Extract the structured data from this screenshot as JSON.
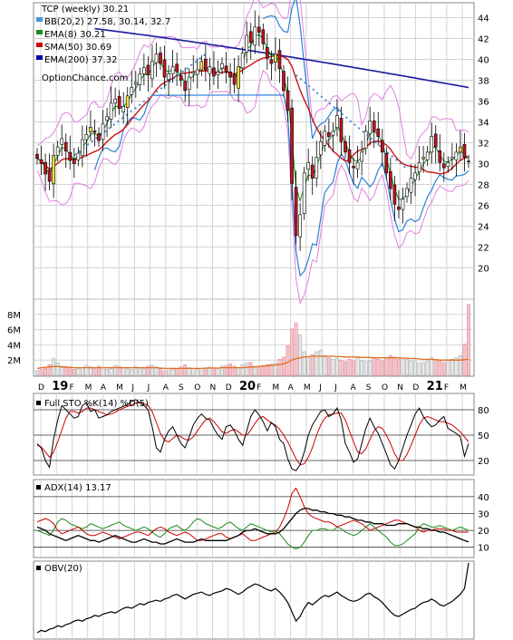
{
  "chart_data": [
    {
      "type": "candlestick",
      "panel": "price",
      "title": "TCP (weekly) 30.21",
      "source": "OptionChance.com",
      "ylim": [
        17,
        45
      ],
      "yticks": [
        20,
        22,
        24,
        26,
        28,
        30,
        32,
        34,
        36,
        38,
        40,
        42,
        44
      ],
      "legend": [
        {
          "label": "BB(20,2) 27.58, 30.14, 32.7",
          "color": "#4a90d9"
        },
        {
          "label": "EMA(8) 30.21",
          "color": "#1a8a1a"
        },
        {
          "label": "SMA(50) 30.69",
          "color": "#cc0000"
        },
        {
          "label": "EMA(200) 37.32",
          "color": "#0000aa"
        }
      ],
      "ema8_last": 30.21,
      "sma50_last": 30.69,
      "ema200_last": 37.32,
      "bb_last": {
        "lower": 27.58,
        "middle": 30.14,
        "upper": 32.7
      },
      "close_series": [
        30.5,
        30.0,
        29.0,
        28.3,
        30.8,
        31.6,
        32.4,
        31.2,
        30.3,
        30.0,
        31.0,
        32.3,
        32.8,
        33.5,
        33.0,
        32.2,
        33.8,
        34.5,
        35.8,
        36.2,
        35.3,
        35.5,
        36.5,
        37.3,
        37.8,
        38.6,
        39.2,
        38.5,
        39.8,
        40.5,
        39.6,
        38.3,
        38.6,
        39.3,
        38.8,
        38.0,
        37.0,
        38.3,
        38.8,
        39.0,
        39.8,
        39.0,
        39.3,
        38.4,
        38.8,
        39.6,
        38.8,
        38.3,
        37.6,
        39.3,
        40.6,
        42.3,
        41.6,
        43.1,
        42.6,
        41.5,
        40.1,
        39.6,
        40.5,
        39.1,
        37.0,
        35.1,
        28.1,
        23.1,
        25.1,
        29.1,
        30.1,
        28.6,
        30.6,
        32.1,
        33.1,
        32.6,
        33.1,
        34.6,
        32.1,
        31.1,
        30.1,
        29.6,
        30.1,
        31.1,
        33.1,
        34.1,
        33.1,
        32.6,
        31.1,
        29.1,
        27.6,
        26.1,
        25.6,
        26.6,
        27.6,
        28.6,
        29.1,
        30.1,
        30.6,
        31.1,
        32.6,
        31.6,
        30.1,
        29.6,
        30.1,
        30.6,
        31.1,
        31.6,
        30.6,
        30.21
      ],
      "x_month_labels": [
        "D",
        "19",
        "F",
        "M",
        "A",
        "M",
        "J",
        "J",
        "A",
        "S",
        "O",
        "N",
        "D",
        "20",
        "F",
        "M",
        "A",
        "M",
        "J",
        "J",
        "A",
        "S",
        "O",
        "N",
        "D",
        "21",
        "F",
        "M"
      ],
      "volume_panel": {
        "yticks_labels": [
          "2M",
          "4M",
          "6M",
          "8M"
        ],
        "yticks_values": [
          2,
          4,
          6,
          8
        ],
        "unit": "M",
        "ylim": [
          0,
          10
        ],
        "values": [
          0.6,
          0.8,
          0.9,
          1.4,
          2.2,
          1.6,
          1.2,
          1.0,
          1.1,
          0.8,
          0.9,
          1.0,
          1.3,
          1.1,
          0.9,
          1.2,
          1.0,
          0.8,
          0.9,
          1.3,
          1.2,
          1.0,
          0.9,
          0.8,
          1.1,
          1.0,
          0.9,
          1.2,
          1.3,
          1.1,
          0.9,
          0.6,
          0.7,
          0.8,
          0.9,
          1.1,
          1.4,
          1.0,
          0.9,
          0.8,
          0.7,
          0.9,
          1.1,
          1.0,
          0.9,
          1.2,
          1.3,
          1.5,
          1.2,
          1.0,
          1.4,
          1.6,
          1.7,
          1.2,
          1.0,
          1.3,
          1.4,
          1.5,
          1.6,
          2.1,
          2.4,
          3.9,
          6.1,
          6.9,
          5.3,
          3.1,
          2.3,
          2.7,
          3.1,
          3.3,
          2.6,
          2.3,
          2.1,
          2.2,
          2.0,
          1.8,
          2.1,
          1.9,
          2.3,
          2.0,
          1.8,
          1.9,
          2.3,
          2.1,
          1.9,
          2.3,
          2.6,
          2.4,
          2.1,
          2.3,
          2.1,
          1.9,
          1.8,
          1.6,
          1.7,
          1.9,
          2.3,
          2.1,
          1.9,
          1.7,
          1.9,
          2.1,
          2.3,
          2.6,
          4.1,
          9.3
        ],
        "avg_volume_values": [
          0.9,
          1.0,
          1.05,
          1.1,
          1.15,
          1.15,
          1.1,
          1.1,
          1.05,
          1.0,
          1.0,
          1.0,
          1.0,
          1.0,
          1.0,
          1.0,
          1.0,
          1.0,
          1.0,
          1.0,
          1.0,
          1.0,
          1.0,
          1.0,
          1.0,
          1.0,
          1.0,
          1.0,
          1.0,
          1.0,
          0.95,
          0.9,
          0.9,
          0.9,
          0.9,
          0.9,
          0.9,
          0.9,
          0.9,
          0.9,
          0.9,
          0.95,
          0.95,
          0.95,
          0.95,
          1.0,
          1.0,
          1.0,
          1.0,
          1.0,
          1.0,
          1.05,
          1.1,
          1.1,
          1.15,
          1.2,
          1.25,
          1.3,
          1.35,
          1.4,
          1.5,
          1.7,
          2.0,
          2.2,
          2.3,
          2.4,
          2.45,
          2.5,
          2.5,
          2.5,
          2.5,
          2.5,
          2.5,
          2.45,
          2.45,
          2.4,
          2.4,
          2.4,
          2.4,
          2.35,
          2.35,
          2.35,
          2.3,
          2.3,
          2.3,
          2.3,
          2.3,
          2.3,
          2.3,
          2.25,
          2.25,
          2.2,
          2.2,
          2.15,
          2.1,
          2.1,
          2.1,
          2.05,
          2.0,
          2.0,
          2.0,
          2.0,
          2.0,
          2.0,
          2.05,
          2.1
        ]
      }
    },
    {
      "type": "line",
      "panel": "stochastic",
      "title": "Full STO %K(14) %D(5)",
      "ylim": [
        5,
        95
      ],
      "yticks": [
        20,
        50,
        80
      ],
      "series": [
        {
          "name": "%K(14)",
          "color": "#000000",
          "values": [
            40,
            35,
            20,
            12,
            45,
            68,
            85,
            80,
            75,
            70,
            72,
            85,
            88,
            78,
            80,
            70,
            72,
            74,
            78,
            80,
            82,
            84,
            86,
            90,
            92,
            88,
            85,
            80,
            60,
            35,
            30,
            45,
            55,
            60,
            50,
            40,
            35,
            48,
            62,
            70,
            75,
            70,
            68,
            58,
            50,
            45,
            60,
            62,
            55,
            45,
            38,
            55,
            72,
            80,
            74,
            66,
            55,
            65,
            60,
            45,
            40,
            22,
            10,
            8,
            15,
            30,
            50,
            62,
            70,
            78,
            80,
            72,
            75,
            82,
            68,
            40,
            30,
            18,
            22,
            40,
            58,
            70,
            60,
            52,
            40,
            28,
            15,
            10,
            20,
            35,
            50,
            62,
            75,
            82,
            72,
            65,
            60,
            62,
            68,
            72,
            58,
            55,
            52,
            48,
            25,
            40
          ]
        },
        {
          "name": "%D(5)",
          "color": "#cc0000",
          "values": [
            38,
            36,
            30,
            24,
            30,
            42,
            56,
            70,
            78,
            78,
            76,
            78,
            82,
            82,
            80,
            78,
            76,
            74,
            75,
            77,
            80,
            82,
            84,
            86,
            88,
            88,
            87,
            85,
            78,
            65,
            52,
            44,
            42,
            46,
            50,
            48,
            45,
            44,
            48,
            55,
            62,
            68,
            70,
            66,
            60,
            54,
            52,
            55,
            57,
            54,
            50,
            50,
            56,
            64,
            70,
            72,
            68,
            64,
            62,
            57,
            50,
            42,
            32,
            22,
            15,
            16,
            24,
            35,
            50,
            62,
            70,
            74,
            75,
            76,
            76,
            68,
            55,
            42,
            30,
            28,
            34,
            45,
            55,
            60,
            58,
            50,
            40,
            28,
            20,
            20,
            27,
            38,
            50,
            62,
            70,
            72,
            70,
            68,
            66,
            66,
            64,
            62,
            58,
            54,
            48,
            42
          ]
        }
      ]
    },
    {
      "type": "line",
      "panel": "adx",
      "title": "ADX(14) 13.17",
      "ylim": [
        5,
        48
      ],
      "yticks": [
        10,
        20,
        30,
        40
      ],
      "series": [
        {
          "name": "ADX(14)",
          "color": "#000000",
          "values": [
            22,
            21,
            20,
            18,
            17,
            16,
            15,
            14,
            15,
            16,
            17,
            16,
            15,
            14,
            14,
            13,
            14,
            15,
            16,
            17,
            16,
            15,
            14,
            13,
            13,
            14,
            15,
            14,
            13,
            13,
            12,
            12,
            13,
            14,
            15,
            14,
            13,
            13,
            13,
            14,
            15,
            14,
            14,
            14,
            14,
            14,
            14,
            15,
            16,
            17,
            19,
            20,
            20,
            21,
            20,
            19,
            18,
            18,
            18,
            19,
            21,
            24,
            27,
            30,
            32,
            33,
            33,
            32,
            32,
            31,
            31,
            30,
            30,
            29,
            29,
            28,
            28,
            27,
            26,
            26,
            25,
            25,
            24,
            24,
            24,
            23,
            23,
            23,
            24,
            24,
            24,
            23,
            22,
            22,
            21,
            21,
            20,
            20,
            19,
            19,
            18,
            17,
            16,
            15,
            14,
            13.17
          ]
        },
        {
          "name": "+DI",
          "color": "#1a8a1a",
          "values": [
            20,
            19,
            18,
            17,
            20,
            25,
            27,
            26,
            24,
            23,
            22,
            21,
            22,
            24,
            23,
            22,
            21,
            22,
            23,
            24,
            25,
            23,
            22,
            21,
            20,
            21,
            22,
            21,
            19,
            17,
            16,
            18,
            21,
            22,
            23,
            21,
            20,
            22,
            25,
            27,
            26,
            24,
            23,
            22,
            21,
            22,
            24,
            25,
            23,
            21,
            20,
            22,
            24,
            23,
            22,
            21,
            20,
            19,
            20,
            18,
            15,
            12,
            10,
            9,
            10,
            13,
            17,
            20,
            20,
            21,
            21,
            20,
            20,
            22,
            21,
            19,
            18,
            17,
            18,
            20,
            22,
            24,
            22,
            20,
            18,
            16,
            13,
            11,
            11,
            12,
            14,
            16,
            18,
            22,
            24,
            23,
            22,
            22,
            23,
            22,
            21,
            20,
            21,
            22,
            21,
            20
          ]
        },
        {
          "name": "-DI",
          "color": "#cc0000",
          "values": [
            25,
            26,
            27,
            26,
            24,
            20,
            18,
            19,
            20,
            21,
            22,
            20,
            18,
            17,
            17,
            18,
            19,
            18,
            17,
            16,
            15,
            16,
            17,
            18,
            19,
            19,
            18,
            17,
            19,
            21,
            22,
            21,
            19,
            18,
            17,
            18,
            19,
            18,
            16,
            14,
            14,
            15,
            16,
            17,
            18,
            18,
            16,
            15,
            16,
            17,
            18,
            16,
            14,
            14,
            15,
            16,
            17,
            18,
            19,
            22,
            27,
            33,
            42,
            45,
            40,
            34,
            30,
            28,
            27,
            26,
            25,
            25,
            24,
            22,
            23,
            24,
            25,
            26,
            25,
            24,
            22,
            20,
            21,
            22,
            23,
            24,
            25,
            26,
            26,
            25,
            24,
            23,
            22,
            20,
            19,
            20,
            20,
            21,
            21,
            21,
            20,
            20,
            19,
            19,
            19,
            19
          ]
        }
      ]
    },
    {
      "type": "line",
      "panel": "obv",
      "title": "OBV(20)",
      "series": [
        {
          "name": "OBV(20)",
          "color": "#000000",
          "values": [
            0,
            2,
            1,
            3,
            4,
            6,
            5,
            7,
            8,
            10,
            11,
            10,
            12,
            13,
            15,
            14,
            16,
            17,
            18,
            17,
            19,
            21,
            22,
            21,
            23,
            25,
            24,
            26,
            27,
            28,
            27,
            29,
            30,
            32,
            33,
            31,
            29,
            31,
            33,
            34,
            35,
            33,
            32,
            34,
            35,
            36,
            38,
            37,
            35,
            33,
            35,
            38,
            40,
            42,
            41,
            39,
            37,
            36,
            38,
            35,
            31,
            26,
            18,
            10,
            14,
            21,
            26,
            24,
            27,
            30,
            32,
            31,
            33,
            35,
            32,
            30,
            28,
            27,
            28,
            30,
            33,
            34,
            31,
            29,
            26,
            22,
            18,
            15,
            14,
            16,
            18,
            20,
            21,
            24,
            26,
            27,
            29,
            27,
            24,
            23,
            25,
            27,
            30,
            33,
            38,
            60
          ]
        }
      ]
    }
  ]
}
